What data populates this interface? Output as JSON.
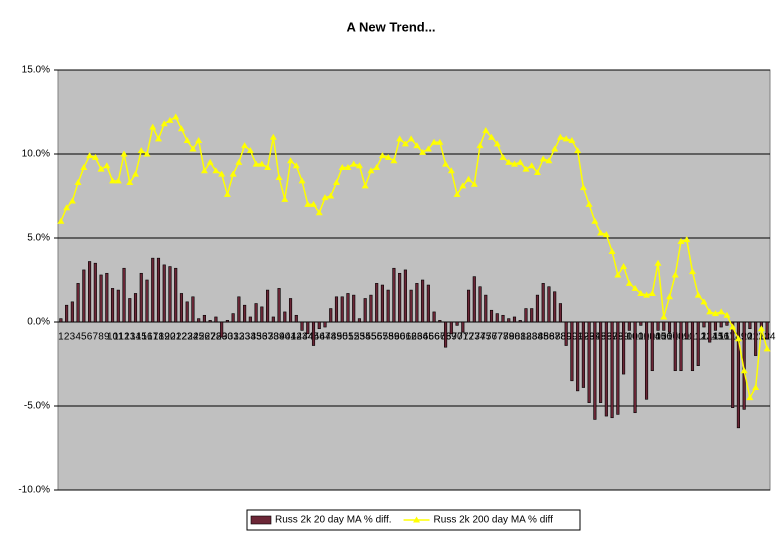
{
  "chart_data": {
    "type": "bar_line",
    "title": "A New Trend...",
    "categories": [
      1,
      2,
      3,
      4,
      5,
      6,
      7,
      8,
      9,
      10,
      11,
      12,
      13,
      14,
      15,
      16,
      17,
      18,
      19,
      20,
      21,
      22,
      23,
      24,
      25,
      26,
      27,
      28,
      29,
      30,
      31,
      32,
      33,
      34,
      35,
      36,
      37,
      38,
      39,
      40,
      41,
      42,
      43,
      44,
      45,
      46,
      47,
      48,
      49,
      50,
      51,
      52,
      53,
      54,
      55,
      56,
      57,
      58,
      59,
      60,
      61,
      62,
      63,
      64,
      65,
      66,
      67,
      68,
      69,
      70,
      71,
      72,
      73,
      74,
      75,
      76,
      77,
      78,
      79,
      80,
      81,
      82,
      83,
      84,
      85,
      86,
      87,
      88,
      89,
      90,
      91,
      92,
      93,
      94,
      95,
      96,
      97,
      98,
      99,
      100,
      101,
      102,
      103,
      104,
      105,
      106,
      107,
      108,
      109,
      110,
      111,
      112,
      113,
      114,
      115,
      116,
      117,
      118,
      119,
      120,
      121,
      122,
      123,
      124
    ],
    "series": [
      {
        "name": "Russ 2k 20 day MA % diff.",
        "kind": "bar",
        "color": "#6b2636",
        "values": [
          0.2,
          1,
          1.2,
          2.3,
          3.1,
          3.6,
          3.5,
          2.8,
          2.9,
          2,
          1.9,
          3.2,
          1.4,
          1.7,
          2.9,
          2.5,
          3.8,
          3.8,
          3.4,
          3.3,
          3.2,
          1.7,
          1.2,
          1.5,
          0.2,
          0.4,
          0.1,
          0.3,
          -0.9,
          0.1,
          0.5,
          1.5,
          1,
          0.3,
          1.1,
          0.9,
          1.9,
          0.3,
          2,
          0.6,
          1.4,
          0.4,
          -0.5,
          -0.7,
          -1.4,
          -0.4,
          -0.3,
          0.8,
          1.5,
          1.5,
          1.7,
          1.6,
          0.2,
          1.4,
          1.6,
          2.3,
          2.2,
          1.9,
          3.2,
          2.9,
          3.1,
          1.9,
          2.3,
          2.5,
          2.2,
          0.6,
          0.1,
          -1.5,
          -0.7,
          -0.2,
          -0.6,
          1.9,
          2.7,
          2.1,
          1.6,
          0.7,
          0.5,
          0.4,
          0.2,
          0.3,
          0.1,
          0.8,
          0.8,
          1.6,
          2.3,
          2.1,
          1.8,
          1.1,
          -1.4,
          -3.5,
          -4.1,
          -3.9,
          -4.8,
          -5.8,
          -4.8,
          -5.6,
          -5.7,
          -5.5,
          -3.1,
          -0.5,
          -5.4,
          -0.2,
          -4.6,
          -2.9,
          -0.5,
          -0.5,
          -0.6,
          -2.9,
          -2.9,
          -1,
          -2.9,
          -2.6,
          -0.3,
          -1.2,
          -0.5,
          -0.3,
          -0.2,
          -5.1,
          -6.3,
          -5.2,
          -0.4,
          -2,
          -0.3,
          -1
        ]
      },
      {
        "name": "Russ 2k 200 day MA % diff",
        "kind": "line",
        "color": "#ffff00",
        "values": [
          6,
          6.8,
          7.2,
          8.3,
          9.2,
          9.9,
          9.8,
          9.1,
          9.3,
          8.4,
          8.4,
          10,
          8.3,
          8.8,
          10.2,
          10,
          11.6,
          10.9,
          11.8,
          12,
          12.2,
          11.5,
          10.8,
          10.3,
          10.8,
          9,
          9.5,
          9,
          8.8,
          7.6,
          8.8,
          9.5,
          10.5,
          10.2,
          9.4,
          9.4,
          9.2,
          11,
          8.6,
          7.3,
          9.6,
          9.3,
          8.4,
          7,
          7,
          6.5,
          7.4,
          7.5,
          8.3,
          9.2,
          9.2,
          9.4,
          9.3,
          8.1,
          9,
          9.2,
          9.9,
          9.8,
          9.6,
          10.9,
          10.6,
          10.9,
          10.5,
          10.1,
          10.3,
          10.7,
          10.7,
          9.4,
          9,
          7.6,
          8.1,
          8.5,
          8.2,
          10.5,
          11.4,
          11,
          10.6,
          9.8,
          9.5,
          9.4,
          9.5,
          9.1,
          9.3,
          8.9,
          9.7,
          9.6,
          10.3,
          11,
          10.9,
          10.8,
          10.2,
          8,
          7,
          6,
          5.3,
          5.2,
          4.2,
          2.8,
          3.3,
          2.3,
          2,
          1.7,
          1.6,
          1.7,
          3.5,
          0.3,
          1.5,
          2.8,
          4.8,
          4.9,
          3,
          1.6,
          1.2,
          0.6,
          0.5,
          0.6,
          0.4,
          -0.3,
          -1,
          -2.9,
          -4.5,
          -3.9,
          -0.4,
          -1.6
        ]
      }
    ],
    "ylim": [
      -10,
      15
    ],
    "yticks": [
      {
        "value": -10,
        "label": "-10.0%"
      },
      {
        "value": -5,
        "label": "-5.0%"
      },
      {
        "value": 0,
        "label": "0.0%"
      },
      {
        "value": 5,
        "label": "5.0%"
      },
      {
        "value": 10,
        "label": "10.0%"
      },
      {
        "value": 15,
        "label": "15.0%"
      }
    ],
    "grid": true,
    "plot_background": "#c0c0c0",
    "legend": "bottom"
  }
}
